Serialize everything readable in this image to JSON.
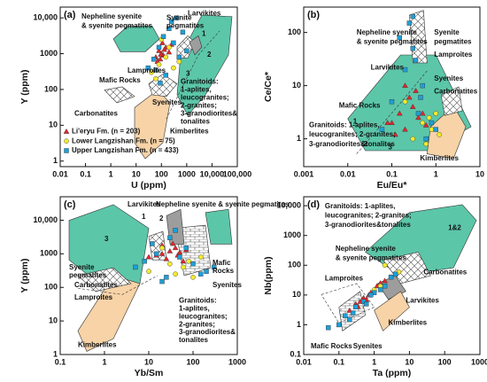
{
  "chart_data": [
    {
      "type": "scatter",
      "label": "(a)",
      "xlabel": "U (ppm)",
      "ylabel": "Y (ppm)",
      "xlog": true,
      "ylog": true,
      "xlim": [
        0.01,
        100000
      ],
      "ylim": [
        0.7,
        20000
      ],
      "xticks": [
        0.01,
        0.1,
        1,
        10,
        100,
        1000,
        {
          "value": 10000,
          "label": "10,000"
        },
        {
          "value": 100000,
          "label": "100,000"
        }
      ],
      "yticks": [
        1,
        10,
        100,
        1000,
        {
          "value": 10000,
          "label": "10,000"
        }
      ],
      "annotations": [
        "Nepheline syenite",
        "& syenite pegmatites",
        "Syenite",
        "pegmatites",
        "Larvikites",
        "1",
        "2",
        "3",
        "Lamproites",
        "Mafic Rocks",
        "Carbonatites",
        "Syenites",
        "Kimberlites",
        "Granitoids:",
        "1-aplites,",
        "leucogranites;",
        "2-granites;",
        "3-granodiorites&",
        "tonalites"
      ],
      "series": [
        {
          "name": "Li'eryu Fm. (n = 203)",
          "color": "#e3262b",
          "marker": "triangle",
          "x": [
            60,
            80,
            100,
            120,
            150,
            90,
            200,
            70,
            110,
            130,
            250,
            95
          ],
          "values": [
            800,
            1200,
            1000,
            900,
            1500,
            700,
            1100,
            600,
            2000,
            1300,
            1800,
            950
          ]
        },
        {
          "name": "Lower Langzishan Fm. (n = 75)",
          "color": "#f3eb2d",
          "marker": "circle",
          "x": [
            40,
            80,
            150,
            300,
            60,
            200,
            500,
            100
          ],
          "values": [
            300,
            500,
            800,
            400,
            200,
            1500,
            600,
            2500
          ]
        },
        {
          "name": "Upper Langzishan Fm. (n = 433)",
          "color": "#1e9fd8",
          "marker": "square",
          "x": [
            30,
            50,
            80,
            120,
            200,
            300,
            500,
            700,
            150,
            90,
            400,
            1000,
            60,
            250
          ],
          "values": [
            400,
            700,
            1500,
            3000,
            5000,
            2000,
            800,
            4000,
            250,
            150,
            10000,
            1200,
            350,
            8000
          ]
        }
      ]
    },
    {
      "type": "scatter",
      "label": "(b)",
      "xlabel": "Eu/Eu*",
      "ylabel": "Ce/Ce*",
      "xlog": true,
      "ylog": true,
      "xlim": [
        0.001,
        10
      ],
      "ylim": [
        0.3,
        300
      ],
      "xticks": [
        0.001,
        0.01,
        0.1,
        1,
        10
      ],
      "yticks": [
        1,
        10,
        100
      ],
      "annotations": [
        "Nepheline syenite",
        "& syenite pegmatites",
        "Syenite",
        "pegmatites",
        "Lamproites",
        "Larvikites",
        "Syenites",
        "Carbonatites",
        "Mafic Rocks",
        "1",
        "2",
        "3",
        "Granitoids: 1-aplites,",
        "leucogranites; 2-granites;",
        "3-granodiorites&tonalites",
        "Kimberlites"
      ],
      "series": [
        {
          "color": "#e3262b",
          "marker": "triangle",
          "x": [
            0.1,
            0.15,
            0.2,
            0.3,
            0.25,
            0.4,
            0.12,
            0.5,
            0.35,
            0.08,
            0.6,
            0.2
          ],
          "values": [
            2,
            3,
            1.5,
            4,
            6,
            2.5,
            1.2,
            3,
            8,
            2,
            1.8,
            10
          ]
        },
        {
          "color": "#f3eb2d",
          "marker": "circle",
          "x": [
            0.3,
            0.5,
            0.8,
            1,
            0.6,
            0.2,
            0.7,
            1.2
          ],
          "values": [
            1,
            2,
            1.5,
            3,
            0.8,
            5,
            2.5,
            1.2
          ]
        },
        {
          "color": "#1e9fd8",
          "marker": "square",
          "x": [
            0.1,
            0.2,
            0.3,
            0.5,
            0.4,
            0.15,
            0.25,
            0.8,
            0.06,
            0.35,
            0.6,
            0.3,
            0.45,
            1
          ],
          "values": [
            5,
            20,
            50,
            10,
            3,
            80,
            150,
            2,
            1.5,
            30,
            1,
            200,
            6,
            1.5
          ]
        }
      ]
    },
    {
      "type": "scatter",
      "label": "(c)",
      "xlabel": "Yb/Sm",
      "ylabel": "Y (ppm)",
      "xlog": true,
      "ylog": true,
      "xlim": [
        0.1,
        1000
      ],
      "ylim": [
        1,
        50000
      ],
      "xticks": [
        0.1,
        1,
        10,
        100,
        1000
      ],
      "yticks": [
        1,
        10,
        100,
        1000,
        {
          "value": 10000,
          "label": "10,000"
        }
      ],
      "annotations": [
        "Larvikites",
        "1",
        "2",
        "3",
        "Nepheline syenite & syenite pegmatites",
        "Syenite",
        "pegmatites",
        "Mafic",
        "Rocks",
        "Carbonatites",
        "Syenites",
        "Lamproites",
        "Kimberlites",
        "Granitoids:",
        "1-aplites,",
        "leucogranites;",
        "2-granites;",
        "3-granodiorites&",
        "tonalites"
      ],
      "series": [
        {
          "color": "#e3262b",
          "marker": "triangle",
          "x": [
            10,
            20,
            30,
            40,
            15,
            25,
            50,
            60,
            35,
            45,
            20,
            70
          ],
          "values": [
            800,
            1000,
            1200,
            1500,
            900,
            700,
            1100,
            600,
            2000,
            900,
            1800,
            1300
          ]
        },
        {
          "color": "#f3eb2d",
          "marker": "circle",
          "x": [
            10,
            30,
            60,
            100,
            150,
            20,
            40,
            80
          ],
          "values": [
            300,
            500,
            400,
            200,
            800,
            1500,
            250,
            600
          ]
        },
        {
          "color": "#1e9fd8",
          "marker": "square",
          "x": [
            5,
            8,
            15,
            30,
            50,
            100,
            200,
            25,
            12,
            70,
            40,
            300,
            20,
            150
          ],
          "values": [
            400,
            600,
            1000,
            3000,
            800,
            500,
            300,
            200,
            2000,
            1500,
            5000,
            400,
            150,
            250
          ]
        }
      ]
    },
    {
      "type": "scatter",
      "label": "(d)",
      "xlabel": "Ta (ppm)",
      "ylabel": "Nb(ppm)",
      "xlog": true,
      "ylog": true,
      "xlim": [
        0.01,
        1000
      ],
      "ylim": [
        0.1,
        20000
      ],
      "xticks": [
        0.01,
        0.1,
        1,
        10,
        100,
        1000
      ],
      "yticks": [
        0.1,
        1,
        10,
        100,
        1000,
        {
          "value": 10000,
          "label": "10,000"
        }
      ],
      "annotations": [
        "Granitoids: 1-aplites,",
        "leucogranites; 2-granites;",
        "3-granodiorites&tonalites",
        "1&2",
        "Nepheline syenite",
        "& syenite pegmatites",
        "Carbonatites",
        "Lamproites",
        "Larvikites",
        "Kimberlites",
        "Mafic Rocks",
        "Syenites"
      ],
      "series": [
        {
          "color": "#e3262b",
          "marker": "triangle",
          "x": [
            0.2,
            0.3,
            0.5,
            0.7,
            1,
            1.5,
            0.4,
            0.6,
            0.8,
            1.2,
            2,
            0.35
          ],
          "values": [
            3,
            5,
            8,
            10,
            15,
            25,
            6,
            7,
            12,
            20,
            30,
            4
          ]
        },
        {
          "color": "#f3eb2d",
          "marker": "circle",
          "x": [
            0.3,
            0.8,
            1.5,
            3,
            5,
            2,
            1,
            0.5
          ],
          "values": [
            4,
            10,
            20,
            40,
            60,
            100,
            15,
            6
          ]
        },
        {
          "color": "#1e9fd8",
          "marker": "square",
          "x": [
            0.1,
            0.15,
            0.3,
            0.5,
            1,
            2,
            3,
            0.2,
            0.8,
            1.5,
            4,
            0.05,
            0.25,
            0.6
          ],
          "values": [
            1,
            2,
            4,
            6,
            12,
            20,
            40,
            1.5,
            10,
            15,
            50,
            0.8,
            2.5,
            5
          ]
        }
      ]
    }
  ]
}
